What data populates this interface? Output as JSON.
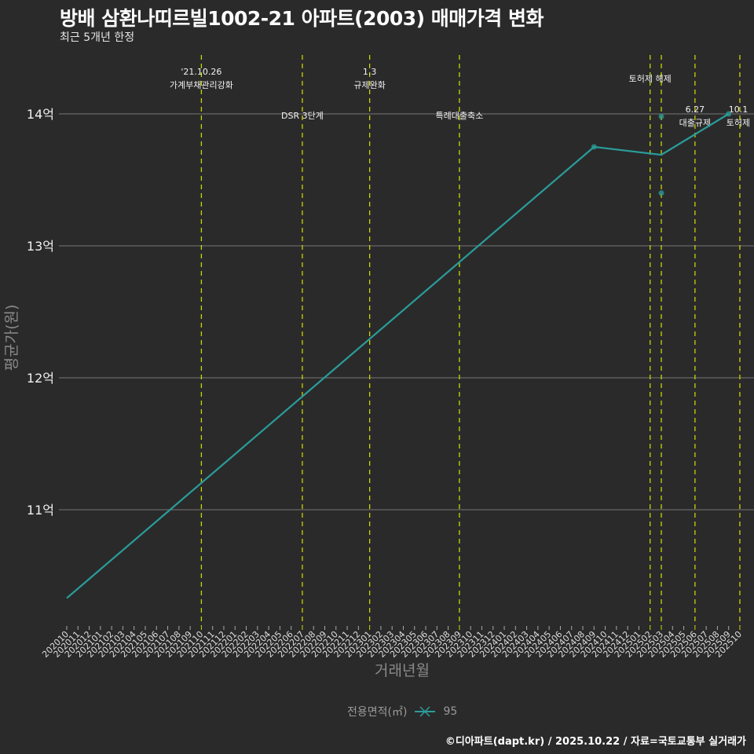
{
  "header": {
    "title": "방배 삼환나띠르빌1002-21 아파트(2003) 매매가격 변화",
    "subtitle": "최근 5개년 한정"
  },
  "legend": {
    "title": "전용면적(㎡)",
    "label": "95",
    "color": "#2a9d9a"
  },
  "caption": "©디아파트(dapt.kr) / 2025.10.22 / 자료=국토교통부 실거래가",
  "colors": {
    "background": "#2a2a2b",
    "line": "#2a9d9a",
    "event_line": "#c8d400",
    "grid": "#777777"
  },
  "chart_data": {
    "type": "line",
    "title": "방배 삼환나띠르빌1002-21 아파트(2003) 매매가격 변화",
    "subtitle": "최근 5개년 한정",
    "xlabel": "거래년월",
    "ylabel": "평균가(원)",
    "ylim": [
      10.15,
      14.45
    ],
    "y_ticks": [
      {
        "value": 11,
        "label": "11억"
      },
      {
        "value": 12,
        "label": "12억"
      },
      {
        "value": 13,
        "label": "13억"
      },
      {
        "value": 14,
        "label": "14억"
      }
    ],
    "grid": true,
    "legend_position": "bottom",
    "x_ticks": [
      "202010",
      "202011",
      "202012",
      "202101",
      "202102",
      "202103",
      "202104",
      "202105",
      "202106",
      "202107",
      "202108",
      "202109",
      "202110",
      "202111",
      "202112",
      "202201",
      "202202",
      "202203",
      "202204",
      "202205",
      "202206",
      "202207",
      "202208",
      "202209",
      "202210",
      "202211",
      "202212",
      "202301",
      "202302",
      "202303",
      "202304",
      "202305",
      "202306",
      "202307",
      "202308",
      "202309",
      "202310",
      "202311",
      "202312",
      "202401",
      "202402",
      "202403",
      "202404",
      "202405",
      "202406",
      "202407",
      "202408",
      "202409",
      "202410",
      "202411",
      "202412",
      "202501",
      "202502",
      "202503",
      "202504",
      "202505",
      "202506",
      "202507",
      "202508",
      "202509",
      "202510"
    ],
    "series": [
      {
        "name": "95",
        "line": [
          {
            "x": "202010",
            "y": 10.33
          },
          {
            "x": "202409",
            "y": 13.75
          },
          {
            "x": "202503",
            "y": 13.69
          },
          {
            "x": "202509",
            "y": 14.0
          }
        ],
        "points": [
          {
            "x": "202409",
            "y": 13.75
          },
          {
            "x": "202503",
            "y": 13.98
          },
          {
            "x": "202503",
            "y": 13.4
          },
          {
            "x": "202509",
            "y": 14.0
          }
        ]
      }
    ],
    "events": [
      {
        "x": "202110",
        "lines": [
          "'21.10.26",
          "가계부채관리강화"
        ],
        "label_y": "top"
      },
      {
        "x": "202207",
        "lines": [
          "DSR 3단계"
        ],
        "label_y": "14"
      },
      {
        "x": "202301",
        "lines": [
          "1.3",
          "규제완화"
        ],
        "label_y": "top"
      },
      {
        "x": "202309",
        "lines": [
          "특례대출축소"
        ],
        "label_y": "14"
      },
      {
        "x": "202502",
        "lines": [
          "토허제 해제"
        ],
        "label_y": "mid"
      },
      {
        "x": "202503",
        "lines": [],
        "label_y": "none"
      },
      {
        "x": "202506",
        "lines": [
          "6.27",
          "대출규제"
        ],
        "label_y": "14"
      },
      {
        "x": "202510",
        "lines": [
          "10.1",
          "토허제"
        ],
        "label_y": "14"
      }
    ]
  }
}
